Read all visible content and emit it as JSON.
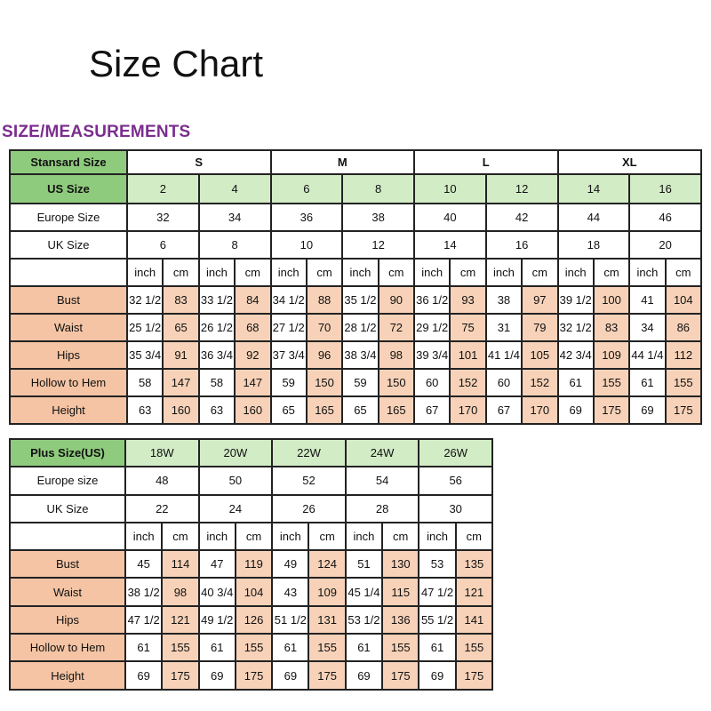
{
  "title": "Size Chart",
  "subtitle": "SIZE/MEASUREMENTS",
  "colors": {
    "header_green": "#8fcb7d",
    "light_green": "#d2ecc6",
    "peach": "#f4c4a4",
    "subtitle_purple": "#7b2d8e"
  },
  "standard_table": {
    "standard_label": "Stansard Size",
    "standard_sizes": [
      "S",
      "M",
      "L",
      "XL"
    ],
    "us_label": "US Size",
    "us_sizes": [
      "2",
      "4",
      "6",
      "8",
      "10",
      "12",
      "14",
      "16"
    ],
    "europe_label": "Europe Size",
    "europe_sizes": [
      "32",
      "34",
      "36",
      "38",
      "40",
      "42",
      "44",
      "46"
    ],
    "uk_label": "UK Size",
    "uk_sizes": [
      "6",
      "8",
      "10",
      "12",
      "14",
      "16",
      "18",
      "20"
    ],
    "units": [
      "inch",
      "cm"
    ],
    "rows": [
      {
        "label": "Bust",
        "values": [
          "32 1/2",
          "83",
          "33 1/2",
          "84",
          "34 1/2",
          "88",
          "35 1/2",
          "90",
          "36 1/2",
          "93",
          "38",
          "97",
          "39 1/2",
          "100",
          "41",
          "104"
        ]
      },
      {
        "label": "Waist",
        "values": [
          "25 1/2",
          "65",
          "26 1/2",
          "68",
          "27 1/2",
          "70",
          "28 1/2",
          "72",
          "29 1/2",
          "75",
          "31",
          "79",
          "32 1/2",
          "83",
          "34",
          "86"
        ]
      },
      {
        "label": "Hips",
        "values": [
          "35 3/4",
          "91",
          "36 3/4",
          "92",
          "37 3/4",
          "96",
          "38 3/4",
          "98",
          "39 3/4",
          "101",
          "41 1/4",
          "105",
          "42 3/4",
          "109",
          "44 1/4",
          "112"
        ]
      },
      {
        "label": "Hollow to Hem",
        "values": [
          "58",
          "147",
          "58",
          "147",
          "59",
          "150",
          "59",
          "150",
          "60",
          "152",
          "60",
          "152",
          "61",
          "155",
          "61",
          "155"
        ]
      },
      {
        "label": "Height",
        "values": [
          "63",
          "160",
          "63",
          "160",
          "65",
          "165",
          "65",
          "165",
          "67",
          "170",
          "67",
          "170",
          "69",
          "175",
          "69",
          "175"
        ]
      }
    ]
  },
  "plus_table": {
    "plus_label": "Plus Size(US)",
    "plus_sizes": [
      "18W",
      "20W",
      "22W",
      "24W",
      "26W"
    ],
    "europe_label": "Europe size",
    "europe_sizes": [
      "48",
      "50",
      "52",
      "54",
      "56"
    ],
    "uk_label": "UK Size",
    "uk_sizes": [
      "22",
      "24",
      "26",
      "28",
      "30"
    ],
    "units": [
      "inch",
      "cm"
    ],
    "rows": [
      {
        "label": "Bust",
        "values": [
          "45",
          "114",
          "47",
          "119",
          "49",
          "124",
          "51",
          "130",
          "53",
          "135"
        ]
      },
      {
        "label": "Waist",
        "values": [
          "38 1/2",
          "98",
          "40 3/4",
          "104",
          "43",
          "109",
          "45 1/4",
          "115",
          "47 1/2",
          "121"
        ]
      },
      {
        "label": "Hips",
        "values": [
          "47 1/2",
          "121",
          "49 1/2",
          "126",
          "51 1/2",
          "131",
          "53 1/2",
          "136",
          "55 1/2",
          "141"
        ]
      },
      {
        "label": "Hollow to Hem",
        "values": [
          "61",
          "155",
          "61",
          "155",
          "61",
          "155",
          "61",
          "155",
          "61",
          "155"
        ]
      },
      {
        "label": "Height",
        "values": [
          "69",
          "175",
          "69",
          "175",
          "69",
          "175",
          "69",
          "175",
          "69",
          "175"
        ]
      }
    ]
  }
}
